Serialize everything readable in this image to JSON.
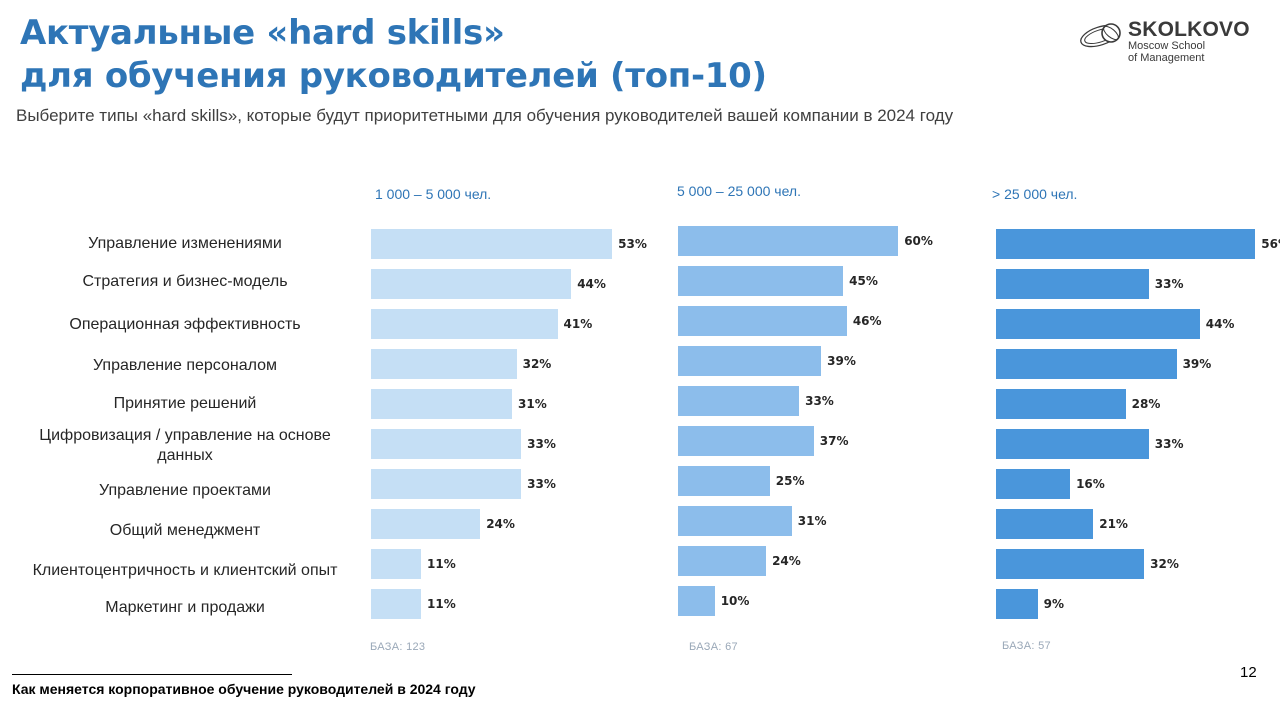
{
  "title_line1": "Актуальные «hard skills»",
  "title_line2": "для обучения руководителей (топ-10)",
  "subtitle": "Выберите типы «hard skills», которые будут приоритетными для обучения руководителей вашей компании в 2024 году",
  "logo": {
    "name": "SKOLKOVO",
    "line1": "Moscow School",
    "line2": "of Management"
  },
  "footer": "Как меняется корпоративное обучение руководителей в 2024 году",
  "page_number": "12",
  "colors": {
    "title": "#2e75b6",
    "series1": "#c5dff5",
    "series2": "#8cbdeb",
    "series3": "#4a96db"
  },
  "chart_data": {
    "type": "bar",
    "orientation": "horizontal",
    "categories": [
      "Управление изменениями",
      "Стратегия и бизнес-модель",
      "Операционная эффективность",
      "Управление персоналом",
      "Принятие решений",
      "Цифровизация / управление на основе данных",
      "Управление проектами",
      "Общий менеджмент",
      "Клиентоцентричность и клиентский опыт",
      "Маркетинг и продажи"
    ],
    "value_format": "%",
    "xlim": [
      0,
      60
    ],
    "series": [
      {
        "name": "1 000 – 5 000 чел.",
        "base": "БАЗА: 123",
        "values": [
          53,
          44,
          41,
          32,
          31,
          33,
          33,
          24,
          11,
          11
        ]
      },
      {
        "name": "5 000 – 25 000 чел.",
        "base": "БАЗА: 67",
        "values": [
          60,
          45,
          46,
          39,
          33,
          37,
          25,
          31,
          24,
          10
        ]
      },
      {
        "name": "> 25 000 чел.",
        "base": "БАЗА: 57",
        "values": [
          56,
          33,
          44,
          39,
          28,
          33,
          16,
          21,
          32,
          9
        ]
      }
    ]
  }
}
